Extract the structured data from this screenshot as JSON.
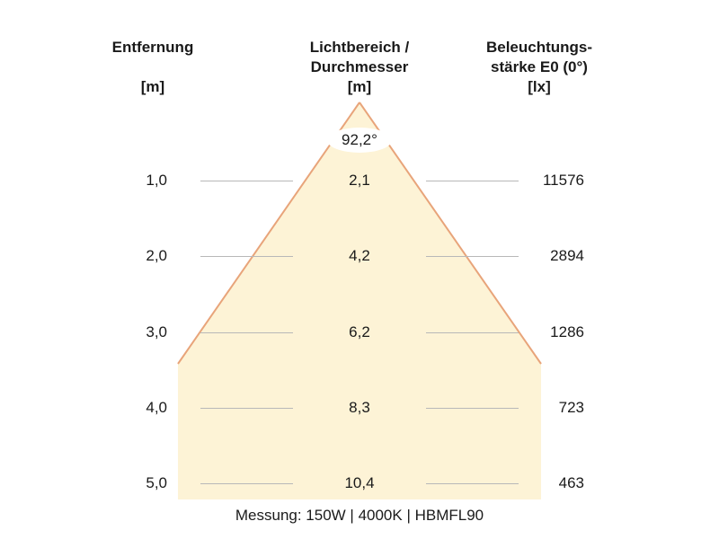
{
  "headers": {
    "distance": {
      "line1": "Entfernung",
      "unit": "[m]"
    },
    "diameter": {
      "line1": "Lichtbereich /",
      "line2": "Durchmesser",
      "unit": "[m]"
    },
    "illuminance": {
      "line1": "Beleuchtungs-",
      "line2": "stärke E0 (0°)",
      "unit": "[lx]"
    }
  },
  "beam_angle_label": "92,2°",
  "rows": [
    {
      "distance": "1,0",
      "diameter": "2,1",
      "illuminance": "11576"
    },
    {
      "distance": "2,0",
      "diameter": "4,2",
      "illuminance": "2894"
    },
    {
      "distance": "3,0",
      "diameter": "6,2",
      "illuminance": "1286"
    },
    {
      "distance": "4,0",
      "diameter": "8,3",
      "illuminance": "723"
    },
    {
      "distance": "5,0",
      "diameter": "10,4",
      "illuminance": "463"
    }
  ],
  "footer": "Messung: 150W | 4000K | HBMFL90",
  "colors": {
    "cone_fill": "#fdf3d6",
    "cone_edge": "#e8a47a",
    "guide_line": "#b8b8b8"
  }
}
